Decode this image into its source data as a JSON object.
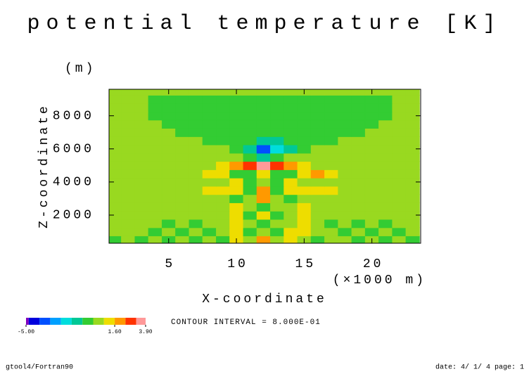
{
  "chart_data": {
    "type": "contour",
    "title": "potential temperature [K]",
    "y_unit": "(m)",
    "y_label": "Z-coordinate",
    "x_label": "X-coordinate",
    "x_unit": "(×1000 m)",
    "note": "CONTOUR INTERVAL = 8.000E-01",
    "footer_left": "gtool4/Fortran90",
    "footer_right": "date: 4/ 1/ 4 page: 1",
    "xlim": [
      0.6,
      23.6
    ],
    "ylim": [
      300,
      9600
    ],
    "xticks": [
      5,
      10,
      15,
      20
    ],
    "yticks": [
      2000,
      4000,
      6000,
      8000
    ],
    "x": [
      1,
      2,
      3,
      4,
      5,
      6,
      7,
      8,
      9,
      10,
      11,
      12,
      13,
      14,
      15,
      16,
      17,
      18,
      19,
      20,
      21,
      22,
      23
    ],
    "y": [
      500,
      1000,
      1500,
      2000,
      2500,
      3000,
      3500,
      4000,
      4500,
      5000,
      5500,
      6000,
      6500,
      7000,
      7500,
      8000,
      8500,
      9000,
      9500
    ],
    "values": [
      [
        -0.4,
        0.3,
        -0.4,
        0.3,
        -0.4,
        0.3,
        -0.4,
        0.3,
        -0.4,
        0.9,
        0.3,
        1.7,
        0.3,
        0.9,
        0.3,
        -0.4,
        0.3,
        0.3,
        -0.4,
        0.3,
        -0.4,
        0.3,
        -0.4
      ],
      [
        0.3,
        0.3,
        0.3,
        -0.4,
        0.3,
        -0.4,
        0.3,
        -0.4,
        0.3,
        0.9,
        -0.4,
        0.3,
        -0.4,
        0.9,
        0.9,
        0.3,
        0.3,
        -0.4,
        0.3,
        -0.4,
        0.3,
        -0.4,
        0.3
      ],
      [
        0.3,
        0.3,
        0.3,
        0.3,
        -0.4,
        0.3,
        -0.4,
        0.3,
        0.3,
        0.9,
        0.3,
        -0.4,
        0.3,
        0.3,
        0.9,
        0.3,
        -0.4,
        0.3,
        -0.4,
        0.3,
        -0.4,
        0.3,
        0.3
      ],
      [
        0.3,
        0.3,
        0.3,
        0.3,
        0.3,
        0.3,
        0.3,
        0.3,
        0.3,
        0.9,
        -0.4,
        0.9,
        -0.4,
        0.3,
        0.9,
        0.3,
        0.3,
        0.3,
        0.3,
        0.3,
        0.3,
        0.3,
        0.3
      ],
      [
        0.3,
        0.3,
        0.3,
        0.3,
        0.3,
        0.3,
        0.3,
        0.3,
        0.3,
        0.9,
        0.3,
        -0.4,
        0.3,
        0.3,
        0.9,
        0.3,
        0.3,
        0.3,
        0.3,
        0.3,
        0.3,
        0.3,
        0.3
      ],
      [
        0.3,
        0.3,
        0.3,
        0.3,
        0.3,
        0.3,
        0.3,
        0.3,
        0.3,
        -0.4,
        0.3,
        1.7,
        0.3,
        -0.4,
        0.3,
        0.3,
        0.3,
        0.3,
        0.3,
        0.3,
        0.3,
        0.3,
        0.3
      ],
      [
        0.3,
        0.3,
        0.3,
        0.3,
        0.3,
        0.3,
        0.3,
        0.9,
        0.9,
        0.9,
        -0.4,
        1.7,
        -0.4,
        0.9,
        0.9,
        0.9,
        0.9,
        0.3,
        0.3,
        0.3,
        0.3,
        0.3,
        0.3
      ],
      [
        0.3,
        0.3,
        0.3,
        0.3,
        0.3,
        0.3,
        0.3,
        0.3,
        0.3,
        0.9,
        -0.4,
        0.3,
        -0.4,
        0.9,
        0.3,
        0.3,
        0.3,
        0.3,
        0.3,
        0.3,
        0.3,
        0.3,
        0.3
      ],
      [
        0.3,
        0.3,
        0.3,
        0.3,
        0.3,
        0.3,
        0.3,
        0.9,
        1.0,
        -0.4,
        -0.4,
        0.9,
        -0.4,
        -0.4,
        1.0,
        1.7,
        0.9,
        0.3,
        0.3,
        0.3,
        0.3,
        0.3,
        0.3
      ],
      [
        0.3,
        0.3,
        0.3,
        0.3,
        0.3,
        0.3,
        0.3,
        0.3,
        0.9,
        1.7,
        2.6,
        3.4,
        2.6,
        1.7,
        0.9,
        0.3,
        0.3,
        0.3,
        0.3,
        0.3,
        0.3,
        0.3,
        0.3
      ],
      [
        0.3,
        0.3,
        0.3,
        0.3,
        0.3,
        0.3,
        0.3,
        0.3,
        0.3,
        0.3,
        -0.4,
        -1.2,
        -0.4,
        0.3,
        0.3,
        0.3,
        0.3,
        0.3,
        0.3,
        0.3,
        0.3,
        0.3,
        0.3
      ],
      [
        0.3,
        0.3,
        0.3,
        0.3,
        0.3,
        0.3,
        0.3,
        0.3,
        0.3,
        -0.4,
        -1.2,
        -3.6,
        -2.0,
        -1.2,
        -0.4,
        0.3,
        0.3,
        0.3,
        0.3,
        0.3,
        0.3,
        0.3,
        0.3
      ],
      [
        0.3,
        0.3,
        0.3,
        0.3,
        0.3,
        0.3,
        0.3,
        -0.4,
        -0.4,
        -0.4,
        -0.4,
        -1.2,
        -1.2,
        -0.4,
        -0.4,
        -0.4,
        -0.4,
        0.3,
        0.3,
        0.3,
        0.3,
        0.3,
        0.3
      ],
      [
        0.3,
        0.3,
        0.3,
        0.3,
        0.3,
        -0.4,
        -0.4,
        -0.4,
        -0.4,
        -0.4,
        -0.4,
        -0.4,
        -0.4,
        -0.4,
        -0.4,
        -0.4,
        -0.4,
        -0.4,
        -0.4,
        0.3,
        0.3,
        0.3,
        0.3
      ],
      [
        0.3,
        0.3,
        0.3,
        0.3,
        -0.4,
        -0.4,
        -0.4,
        -0.4,
        -0.4,
        -0.4,
        -0.4,
        -0.4,
        -0.4,
        -0.4,
        -0.4,
        -0.4,
        -0.4,
        -0.4,
        -0.4,
        -0.4,
        0.3,
        0.3,
        0.3
      ],
      [
        0.3,
        0.3,
        0.3,
        -0.4,
        -0.4,
        -0.4,
        -0.4,
        -0.4,
        -0.4,
        -0.4,
        -0.4,
        -0.4,
        -0.4,
        -0.4,
        -0.4,
        -0.4,
        -0.4,
        -0.4,
        -0.4,
        -0.4,
        -0.4,
        0.3,
        0.3
      ],
      [
        0.3,
        0.3,
        0.3,
        -0.4,
        -0.4,
        -0.4,
        -0.4,
        -0.4,
        -0.4,
        -0.4,
        -0.4,
        -0.4,
        -0.4,
        -0.4,
        -0.4,
        -0.4,
        -0.4,
        -0.4,
        -0.4,
        -0.4,
        -0.4,
        0.3,
        0.3
      ],
      [
        0.3,
        0.3,
        0.3,
        -0.4,
        -0.4,
        -0.4,
        -0.4,
        -0.4,
        -0.4,
        -0.4,
        -0.4,
        -0.4,
        -0.4,
        -0.4,
        -0.4,
        -0.4,
        -0.4,
        -0.4,
        -0.4,
        -0.4,
        -0.4,
        0.3,
        0.3
      ],
      [
        0.3,
        0.3,
        0.3,
        0.3,
        0.3,
        0.3,
        0.3,
        0.3,
        0.3,
        0.3,
        0.3,
        0.3,
        0.3,
        0.3,
        0.3,
        0.3,
        0.3,
        0.3,
        0.3,
        0.3,
        0.3,
        0.3,
        0.3
      ]
    ],
    "levels": [
      -5.0,
      -4.8,
      -4.0,
      -3.2,
      -2.4,
      -1.6,
      -0.8,
      0,
      0.8,
      1.6,
      2.4,
      3.2,
      3.9
    ],
    "colors": [
      "#7f00bf",
      "#0000dd",
      "#0050ff",
      "#00a0ff",
      "#00dddd",
      "#00c896",
      "#33cc33",
      "#99d920",
      "#eedd00",
      "#ff9900",
      "#ff3300",
      "#ff9999"
    ],
    "colorbar_ticks": [
      {
        "value": -5.0,
        "label": "-5.00"
      },
      {
        "value": 1.6,
        "label": "1.60"
      },
      {
        "value": 3.9,
        "label": "3.90"
      }
    ]
  }
}
